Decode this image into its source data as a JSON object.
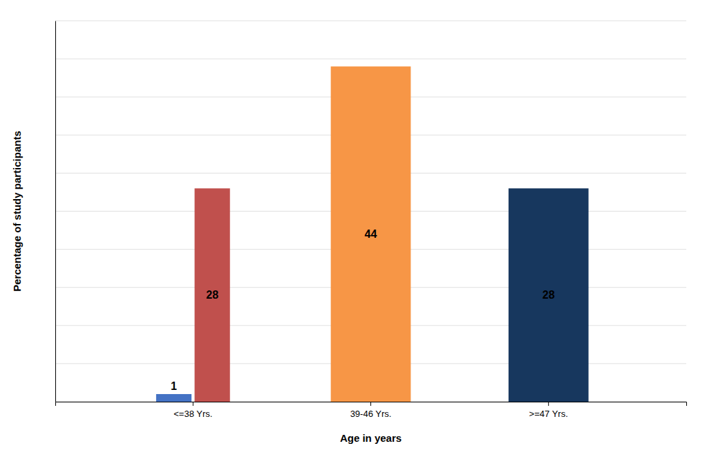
{
  "chart_data": {
    "type": "bar",
    "xlabel": "Age in years",
    "ylabel": "Percentage of study participants",
    "categories": [
      "<=38 Yrs.",
      "39-46 Yrs.",
      ">=47 Yrs."
    ],
    "series": [
      {
        "color": "#4472C4",
        "values": [
          1,
          null,
          null
        ]
      },
      {
        "color": "#C0504D",
        "values": [
          28,
          null,
          null
        ]
      },
      {
        "color": "#F79646",
        "values": [
          null,
          44,
          null
        ]
      },
      {
        "color": "#17375E",
        "values": [
          null,
          null,
          28
        ]
      }
    ],
    "ylim": [
      0,
      50
    ],
    "yticks": [
      0,
      5,
      10,
      15,
      20,
      25,
      30,
      35,
      40,
      45,
      50
    ],
    "grid": true,
    "data_labels": true,
    "tick_labels": "x"
  }
}
